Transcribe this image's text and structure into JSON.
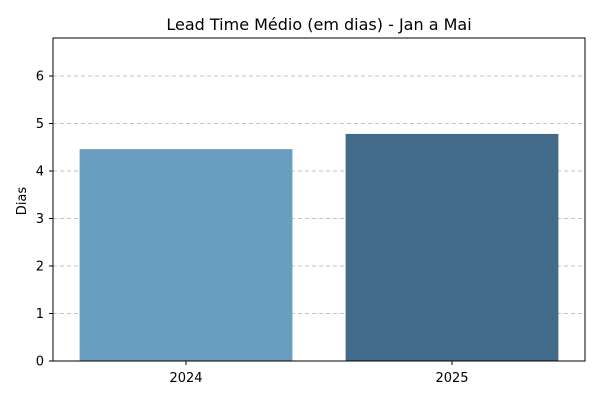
{
  "chart_data": {
    "type": "bar",
    "title": "Lead Time Médio (em dias) - Jan a Mai",
    "xlabel": "",
    "ylabel": "Dias",
    "categories": [
      "2024",
      "2025"
    ],
    "values": [
      4.46,
      4.78
    ],
    "colors": [
      "#6a9ec1",
      "#426a89"
    ],
    "ylim": [
      0,
      6.8
    ],
    "yticks": [
      0,
      1,
      2,
      3,
      4,
      5,
      6
    ],
    "grid": "y-dashed",
    "grid_color": "#b0b0b0"
  }
}
